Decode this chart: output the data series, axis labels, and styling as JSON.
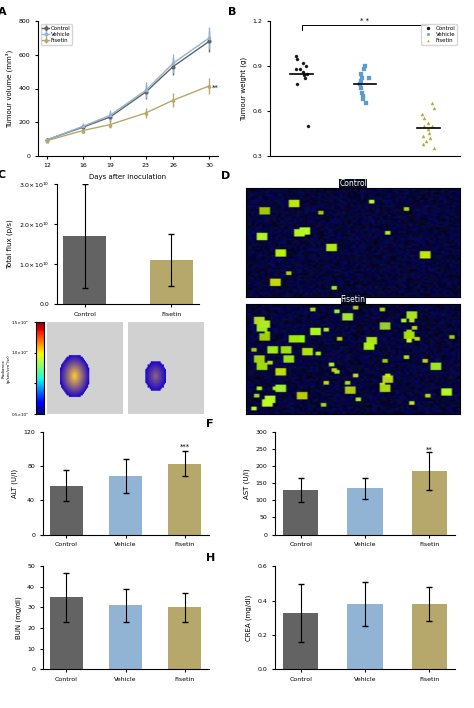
{
  "colors": {
    "control": "#636363",
    "vehicle": "#92b4d4",
    "fisetin": "#b5a86a",
    "control_dot": "#1a1a1a",
    "vehicle_dot": "#5b9bd5",
    "fisetin_dot": "#b8a838"
  },
  "panel_A": {
    "days": [
      12,
      16,
      19,
      23,
      26,
      30
    ],
    "control": [
      95,
      170,
      230,
      380,
      530,
      680
    ],
    "vehicle": [
      95,
      175,
      240,
      390,
      550,
      700
    ],
    "fisetin": [
      90,
      150,
      185,
      255,
      330,
      415
    ],
    "control_err": [
      8,
      15,
      28,
      42,
      52,
      60
    ],
    "vehicle_err": [
      8,
      18,
      32,
      48,
      58,
      68
    ],
    "fisetin_err": [
      8,
      12,
      20,
      30,
      42,
      50
    ],
    "ylabel": "Tumour volume (mm³)",
    "xlabel": "Days after inoculation",
    "ylim": [
      0,
      800
    ],
    "yticks": [
      0,
      200,
      400,
      600,
      800
    ],
    "annotation": "**"
  },
  "panel_B": {
    "ylabel": "Tumour weight (g)",
    "ylim": [
      0.3,
      1.2
    ],
    "yticks": [
      0.3,
      0.6,
      0.9,
      1.2
    ],
    "control_vals": [
      0.88,
      0.85,
      0.82,
      0.92,
      0.95,
      0.78,
      0.88,
      0.9,
      0.86,
      0.84,
      0.97,
      0.5
    ],
    "vehicle_vals": [
      0.82,
      0.8,
      0.85,
      0.75,
      0.68,
      0.9,
      0.88,
      0.72,
      0.65,
      0.78,
      0.82,
      0.7
    ],
    "fisetin_vals": [
      0.52,
      0.5,
      0.55,
      0.48,
      0.45,
      0.58,
      0.42,
      0.5,
      0.38,
      0.35,
      0.62,
      0.65,
      0.4,
      0.43
    ]
  },
  "panel_C": {
    "ylabel": "Total flux (p/s)",
    "categories": [
      "Control",
      "Fisetin"
    ],
    "values": [
      17000000000.0,
      11000000000.0
    ],
    "errors": [
      13000000000.0,
      6500000000.0
    ],
    "ylim": [
      0,
      30000000000.0
    ],
    "yticks": [
      0.0,
      10000000000.0,
      20000000000.0,
      30000000000.0
    ]
  },
  "panel_E": {
    "ylabel": "ALT (U/l)",
    "categories": [
      "Control",
      "Vehicle",
      "Fisetin"
    ],
    "values": [
      57,
      68,
      83
    ],
    "errors": [
      18,
      20,
      15
    ],
    "ylim": [
      0,
      120
    ],
    "yticks": [
      0,
      40,
      80,
      120
    ],
    "annotation": "***"
  },
  "panel_F": {
    "ylabel": "AST (U/l)",
    "categories": [
      "Control",
      "Vehicle",
      "Fisetin"
    ],
    "values": [
      130,
      135,
      185
    ],
    "errors": [
      35,
      30,
      55
    ],
    "ylim": [
      0,
      300
    ],
    "yticks": [
      0,
      50,
      100,
      150,
      200,
      250,
      300
    ],
    "annotation": "**"
  },
  "panel_G": {
    "ylabel": "BUN (mg/dl)",
    "categories": [
      "Control",
      "Vehicle",
      "Fisetin"
    ],
    "values": [
      35,
      31,
      30
    ],
    "errors": [
      12,
      8,
      7
    ],
    "ylim": [
      0,
      50
    ],
    "yticks": [
      0,
      10,
      20,
      30,
      40,
      50
    ]
  },
  "panel_H": {
    "ylabel": "CREA (mg/dl)",
    "categories": [
      "Control",
      "Vehicle",
      "Fisetin"
    ],
    "values": [
      0.33,
      0.38,
      0.38
    ],
    "errors": [
      0.17,
      0.13,
      0.1
    ],
    "ylim": [
      0.0,
      0.6
    ],
    "yticks": [
      0.0,
      0.2,
      0.4,
      0.6
    ]
  }
}
